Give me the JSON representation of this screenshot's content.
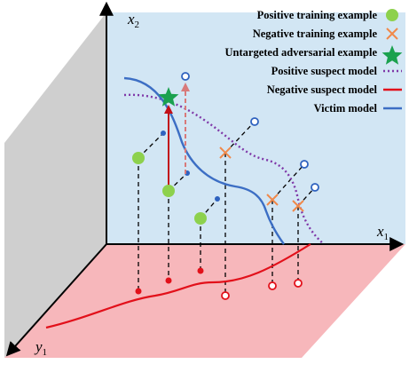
{
  "axes": {
    "x_main": "x",
    "x_sub": "1",
    "x2_main": "x",
    "x2_sub": "2",
    "y_main": "y",
    "y_sub": "1"
  },
  "legend": {
    "positive_training": "Positive training example",
    "negative_training": "Negative training example",
    "untargeted_adversarial": "Untargeted adversarial example",
    "positive_suspect": "Positive suspect model",
    "negative_suspect": "Negative suspect model",
    "victim": "Victim model"
  },
  "colors": {
    "back_wall": "#d2e6f4",
    "floor": "#f7b7bb",
    "side_wall": "#cfcfcf",
    "positive_example": "#8dd14d",
    "negative_example": "#f0894a",
    "adversarial_example": "#1aa14e",
    "positive_suspect_line": "#7f39a8",
    "negative_suspect_line": "#e2101a",
    "victim_line": "#3c6ec4",
    "dot_blue": "#2f62bf",
    "dot_red": "#e2101a"
  }
}
